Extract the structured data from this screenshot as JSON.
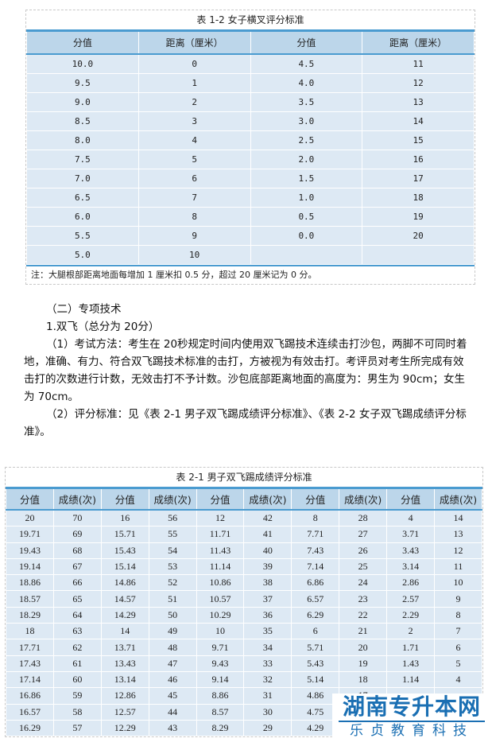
{
  "table1": {
    "caption": "表 1-2 女子横叉评分标准",
    "headers": [
      "分值",
      "距离（厘米）",
      "分值",
      "距离（厘米）"
    ],
    "rows": [
      [
        "10.0",
        "0",
        "4.5",
        "11"
      ],
      [
        "9.5",
        "1",
        "4.0",
        "12"
      ],
      [
        "9.0",
        "2",
        "3.5",
        "13"
      ],
      [
        "8.5",
        "3",
        "3.0",
        "14"
      ],
      [
        "8.0",
        "4",
        "2.5",
        "15"
      ],
      [
        "7.5",
        "5",
        "2.0",
        "16"
      ],
      [
        "7.0",
        "6",
        "1.5",
        "17"
      ],
      [
        "6.5",
        "7",
        "1.0",
        "18"
      ],
      [
        "6.0",
        "8",
        "0.5",
        "19"
      ],
      [
        "5.5",
        "9",
        "0.0",
        "20"
      ],
      [
        "5.0",
        "10",
        "",
        ""
      ]
    ],
    "note": "注：大腿根部距离地面每增加 1 厘米扣 0.5 分，超过 20 厘米记为 0 分。"
  },
  "body": {
    "section": "（二）专项技术",
    "item": "1.双飞（总分为 20分）",
    "para1": "（1）考试方法：考生在 20秒规定时间内使用双飞踢技术连续击打沙包，两脚不可同时着地，准确、有力、符合双飞踢技术标准的击打，方被视为有效击打。考评员对考生所完成有效击打的次数进行计数，无效击打不予计数。沙包底部距离地面的高度为：男生为 90cm；女生为 70cm。",
    "para2": "（2）评分标准：见《表 2-1 男子双飞踢成绩评分标准》、《表 2-2 女子双飞踢成绩评分标准》。"
  },
  "table2": {
    "caption": "表 2-1 男子双飞踢成绩评分标准",
    "headers": [
      "分值",
      "成绩(次)",
      "分值",
      "成绩(次)",
      "分值",
      "成绩(次)",
      "分值",
      "成绩(次)",
      "分值",
      "成绩(次)"
    ],
    "rows": [
      [
        "20",
        "70",
        "16",
        "56",
        "12",
        "42",
        "8",
        "28",
        "4",
        "14"
      ],
      [
        "19.71",
        "69",
        "15.71",
        "55",
        "11.71",
        "41",
        "7.71",
        "27",
        "3.71",
        "13"
      ],
      [
        "19.43",
        "68",
        "15.43",
        "54",
        "11.43",
        "40",
        "7.43",
        "26",
        "3.43",
        "12"
      ],
      [
        "19.14",
        "67",
        "15.14",
        "53",
        "11.14",
        "39",
        "7.14",
        "25",
        "3.14",
        "11"
      ],
      [
        "18.86",
        "66",
        "14.86",
        "52",
        "10.86",
        "38",
        "6.86",
        "24",
        "2.86",
        "10"
      ],
      [
        "18.57",
        "65",
        "14.57",
        "51",
        "10.57",
        "37",
        "6.57",
        "23",
        "2.57",
        "9"
      ],
      [
        "18.29",
        "64",
        "14.29",
        "50",
        "10.29",
        "36",
        "6.29",
        "22",
        "2.29",
        "8"
      ],
      [
        "18",
        "63",
        "14",
        "49",
        "10",
        "35",
        "6",
        "21",
        "2",
        "7"
      ],
      [
        "17.71",
        "62",
        "13.71",
        "48",
        "9.71",
        "34",
        "5.71",
        "20",
        "1.71",
        "6"
      ],
      [
        "17.43",
        "61",
        "13.43",
        "47",
        "9.43",
        "33",
        "5.43",
        "19",
        "1.43",
        "5"
      ],
      [
        "17.14",
        "60",
        "13.14",
        "46",
        "9.14",
        "32",
        "5.14",
        "18",
        "1.14",
        "4"
      ],
      [
        "16.86",
        "59",
        "12.86",
        "45",
        "8.86",
        "31",
        "4.86",
        "17",
        "",
        ""
      ],
      [
        "16.57",
        "58",
        "12.57",
        "44",
        "8.57",
        "30",
        "4.75",
        "",
        "",
        " "
      ],
      [
        "16.29",
        "57",
        "12.29",
        "43",
        "8.29",
        "29",
        "4.29",
        "",
        "",
        ""
      ]
    ]
  },
  "watermark": {
    "line1": "湖南专升本网",
    "line2": "乐贞教育科技"
  }
}
